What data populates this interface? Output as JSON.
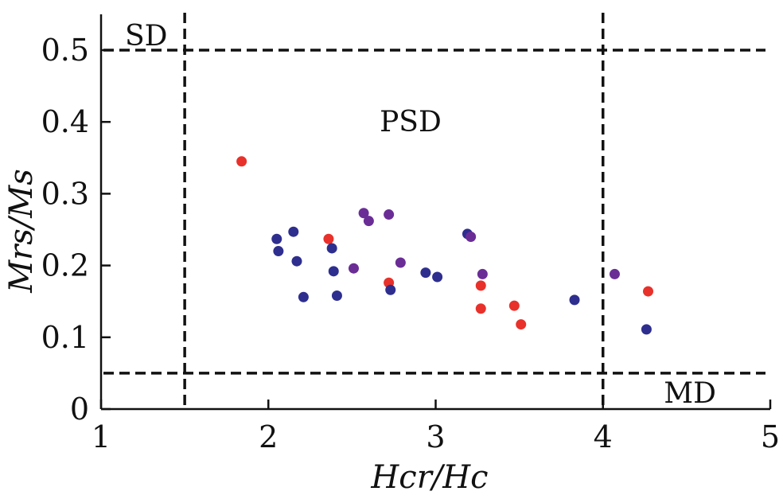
{
  "chart_data": {
    "type": "scatter",
    "title": "",
    "xlabel": "Hcr/Hc",
    "ylabel": "Mrs/Ms",
    "xlim": [
      1,
      5
    ],
    "ylim": [
      0,
      0.55
    ],
    "xticks": [
      1,
      2,
      3,
      4,
      5
    ],
    "xtick_labels": [
      "1",
      "2",
      "3",
      "4",
      "5"
    ],
    "yticks": [
      0,
      0.1,
      0.2,
      0.3,
      0.4,
      0.5
    ],
    "ytick_labels": [
      "0",
      "0.1",
      "0.2",
      "0.3",
      "0.4",
      "0.5"
    ],
    "grid": false,
    "boundaries": {
      "horizontal": [
        0.5,
        0.05
      ],
      "vertical": [
        1.5,
        4.0
      ]
    },
    "regions": [
      {
        "name": "SD",
        "x": 1.27,
        "y": 0.52
      },
      {
        "name": "PSD",
        "x": 2.85,
        "y": 0.4
      },
      {
        "name": "MD",
        "x": 4.52,
        "y": 0.022
      }
    ],
    "series": [
      {
        "name": "red",
        "color": "#e8312a",
        "points": [
          [
            1.84,
            0.345
          ],
          [
            2.36,
            0.237
          ],
          [
            2.72,
            0.176
          ],
          [
            3.27,
            0.172
          ],
          [
            3.27,
            0.14
          ],
          [
            3.47,
            0.144
          ],
          [
            3.51,
            0.118
          ],
          [
            4.27,
            0.164
          ]
        ]
      },
      {
        "name": "blue",
        "color": "#2e2e8f",
        "points": [
          [
            2.05,
            0.237
          ],
          [
            2.06,
            0.22
          ],
          [
            2.15,
            0.247
          ],
          [
            2.17,
            0.206
          ],
          [
            2.21,
            0.156
          ],
          [
            2.38,
            0.224
          ],
          [
            2.39,
            0.192
          ],
          [
            2.41,
            0.158
          ],
          [
            2.73,
            0.166
          ],
          [
            2.94,
            0.19
          ],
          [
            3.01,
            0.184
          ],
          [
            3.19,
            0.244
          ],
          [
            3.83,
            0.152
          ],
          [
            4.26,
            0.111
          ]
        ]
      },
      {
        "name": "purple",
        "color": "#6a2d96",
        "points": [
          [
            2.51,
            0.196
          ],
          [
            2.57,
            0.273
          ],
          [
            2.6,
            0.262
          ],
          [
            2.72,
            0.271
          ],
          [
            2.79,
            0.204
          ],
          [
            3.21,
            0.24
          ],
          [
            3.28,
            0.188
          ],
          [
            4.07,
            0.188
          ]
        ]
      }
    ]
  }
}
